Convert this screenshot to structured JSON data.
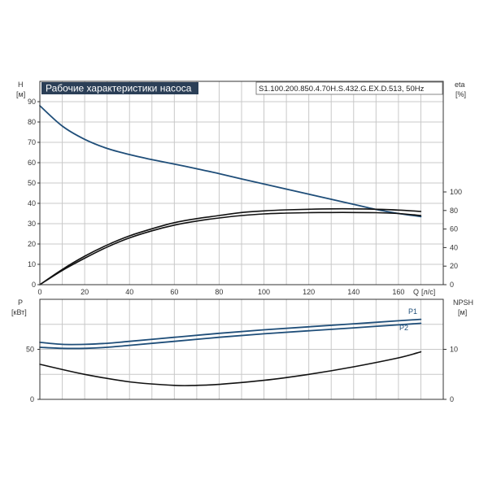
{
  "title": "Рабочие характеристики насоса",
  "model": "S1.100.200.850.4.70H.S.432.G.EX.D.513, 50Hz",
  "colors": {
    "blue": "#1f4e79",
    "black": "#111111",
    "grid": "#c8c8c8",
    "title_bg": "#2b3f57"
  },
  "chart_data": [
    {
      "type": "line",
      "name": "top",
      "x_axis": {
        "label": "Q",
        "unit": "[л/с]",
        "range": [
          0,
          180
        ],
        "ticks": [
          0,
          20,
          40,
          60,
          80,
          100,
          120,
          140,
          160
        ]
      },
      "y_left": {
        "label": "H",
        "unit": "[м]",
        "range": [
          0,
          100
        ],
        "ticks": [
          0,
          10,
          20,
          30,
          40,
          50,
          60,
          70,
          80,
          90
        ]
      },
      "y_right": {
        "label": "eta",
        "unit": "[%]",
        "ticks": [
          0,
          20,
          40,
          60,
          80,
          100
        ]
      },
      "grid": true,
      "series": [
        {
          "color": "blue",
          "axis": "left",
          "x": [
            0,
            10,
            20,
            30,
            40,
            50,
            60,
            70,
            80,
            90,
            100,
            110,
            120,
            130,
            140,
            150,
            160,
            170
          ],
          "y": [
            88,
            78,
            71.5,
            67,
            64,
            61.5,
            59.3,
            57,
            54.6,
            52,
            49.5,
            47,
            44.5,
            42,
            39.5,
            37,
            35,
            33.5
          ]
        },
        {
          "color": "black",
          "axis": "left",
          "x": [
            0,
            10,
            20,
            30,
            40,
            50,
            60,
            70,
            80,
            90,
            100,
            110,
            120,
            130,
            140,
            150,
            160,
            170
          ],
          "y": [
            0,
            7.5,
            14,
            19.5,
            24,
            27.5,
            30.5,
            32.5,
            34,
            35.5,
            36.3,
            36.8,
            37.1,
            37.3,
            37.3,
            37.1,
            36.7,
            36
          ]
        },
        {
          "color": "black",
          "axis": "left",
          "x": [
            0,
            10,
            20,
            30,
            40,
            50,
            60,
            70,
            80,
            90,
            100,
            110,
            120,
            130,
            140,
            150,
            160,
            170
          ],
          "y": [
            0,
            7,
            13,
            18.5,
            23,
            26.5,
            29.3,
            31.3,
            32.8,
            34,
            34.8,
            35.2,
            35.4,
            35.5,
            35.5,
            35.4,
            35,
            34
          ]
        }
      ]
    },
    {
      "type": "line",
      "name": "bottom",
      "x_axis": {
        "range": [
          0,
          180
        ]
      },
      "y_left": {
        "label": "P",
        "unit": "[кВт]",
        "range": [
          0,
          100
        ],
        "ticks": [
          0,
          50
        ]
      },
      "y_right": {
        "label": "NPSH",
        "unit": "[м]",
        "range": [
          0,
          20
        ],
        "ticks": [
          0,
          10
        ]
      },
      "grid": true,
      "series": [
        {
          "name": "P1",
          "color": "blue",
          "axis": "left",
          "x": [
            0,
            10,
            20,
            30,
            40,
            60,
            80,
            100,
            120,
            140,
            160,
            170
          ],
          "y": [
            57,
            55,
            55,
            56,
            58,
            62,
            66,
            69.5,
            72.5,
            75.5,
            78.5,
            80
          ]
        },
        {
          "name": "P2",
          "color": "blue",
          "axis": "left",
          "x": [
            0,
            10,
            20,
            30,
            40,
            60,
            80,
            100,
            120,
            140,
            160,
            170
          ],
          "y": [
            52,
            51,
            51,
            52,
            54,
            58,
            62,
            65.5,
            68.5,
            71.5,
            74.5,
            76
          ]
        },
        {
          "color": "black",
          "axis": "right",
          "x": [
            0,
            20,
            40,
            60,
            70,
            80,
            100,
            120,
            140,
            160,
            170
          ],
          "y": [
            7,
            5,
            3.5,
            2.8,
            2.8,
            3,
            3.8,
            5,
            6.5,
            8.3,
            9.5
          ]
        }
      ]
    }
  ]
}
